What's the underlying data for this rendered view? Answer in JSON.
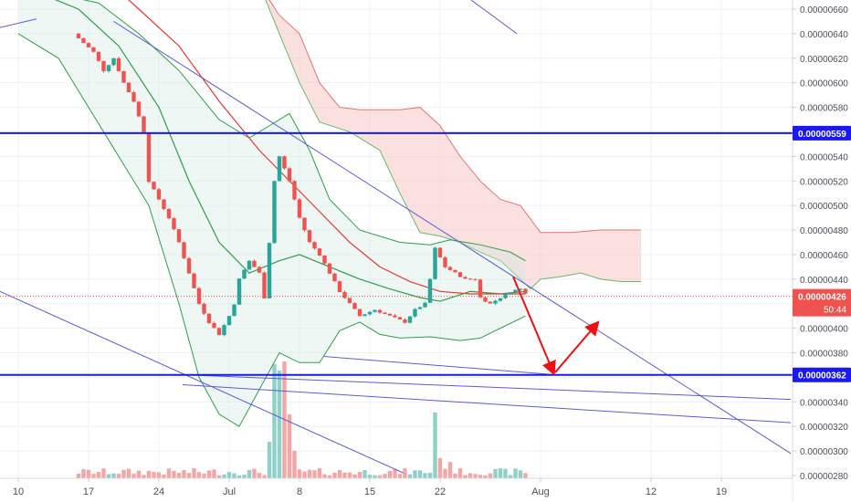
{
  "chart_data": {
    "type": "candlestick",
    "x_tick_labels": [
      "10",
      "17",
      "24",
      "Jul",
      "8",
      "15",
      "22",
      "Aug",
      "12",
      "19"
    ],
    "y_tick_labels": [
      "0.00000660",
      "0.00000640",
      "0.00000620",
      "0.00000600",
      "0.00000580",
      "0.00000560",
      "0.00000540",
      "0.00000520",
      "0.00000500",
      "0.00000480",
      "0.00000460",
      "0.00000440",
      "0.00000420",
      "0.00000400",
      "0.00000380",
      "0.00000360",
      "0.00000340",
      "0.00000320",
      "0.00000300",
      "0.00000280"
    ],
    "ylim": [
      2.78e-06,
      6.68e-06
    ],
    "x_range_days": [
      0,
      63
    ],
    "last_price": {
      "label": "0.00000426",
      "value": 4.26e-06,
      "countdown": "50:44",
      "color": "#ef5350"
    },
    "horizontal_levels": [
      {
        "label": "0.00000559",
        "value": 5.59e-06,
        "color": "#1a1aee"
      },
      {
        "label": "0.00000362",
        "value": 3.62e-06,
        "color": "#1a1aee"
      }
    ],
    "colors": {
      "up": "#26a69a",
      "down": "#ef5350",
      "volume_up": "#8fd0c8",
      "volume_down": "#f4a6a6",
      "trendline": "#5b5bd6",
      "level": "#1a1aee",
      "arrow": "#ee1111",
      "cloud": "#f7c6c6",
      "bollinger": "#2e9e4a",
      "ma": "#e53935"
    }
  }
}
